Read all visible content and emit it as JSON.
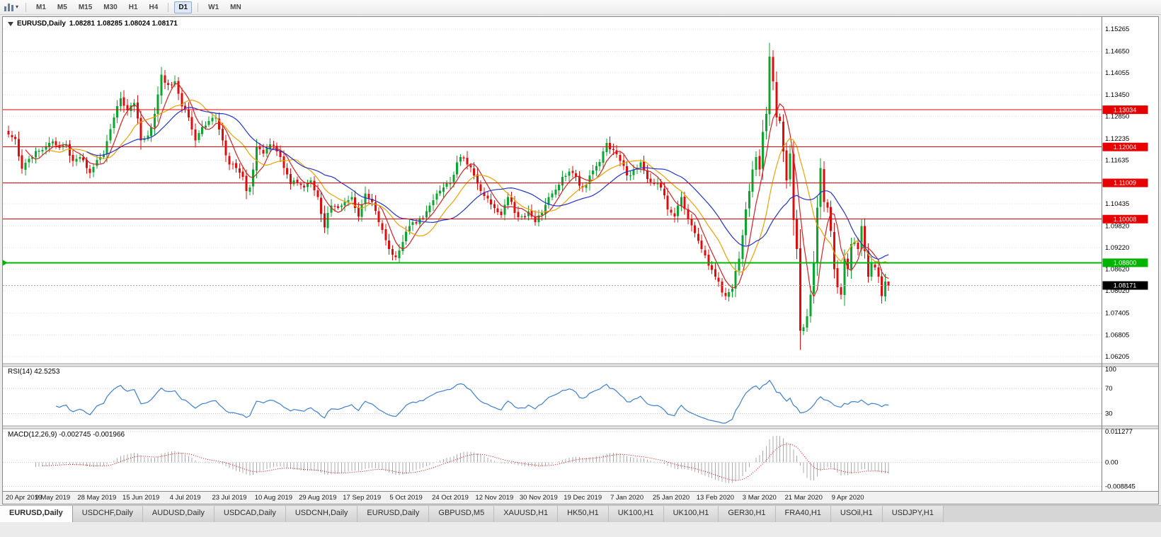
{
  "window": {
    "title_symbol": "EURUSD,Daily",
    "title_ohlc": "1.08281 1.08285 1.08024 1.08171"
  },
  "toolbar": {
    "timeframes": [
      "M1",
      "M5",
      "M15",
      "M30",
      "H1",
      "H4",
      "D1",
      "W1",
      "MN"
    ],
    "active_timeframe": "D1"
  },
  "colors": {
    "candle_up": "#0aa62e",
    "candle_down": "#e00d0d",
    "grid": "#e2e2e2",
    "axis_divider": "#808080",
    "rsi_line": "#3d7fd0",
    "macd_hist": "#ababab",
    "macd_signal": "#e00000",
    "current_price_line": "#a8a8a8",
    "level_red": "#e60000",
    "level_green": "#00b400",
    "tag_black": "#000000"
  },
  "chart_data": {
    "type": "candlestick",
    "symbol": "EURUSD",
    "timeframe": "Daily",
    "last_ohlc": {
      "open": 1.08281,
      "high": 1.08285,
      "low": 1.08024,
      "close": 1.08171
    },
    "price_axis_ticks": [
      "1.15265",
      "1.14650",
      "1.14055",
      "1.13450",
      "1.12850",
      "1.12235",
      "1.11635",
      "1.11040",
      "1.10435",
      "1.09820",
      "1.09220",
      "1.08620",
      "1.08020",
      "1.07405",
      "1.06805",
      "1.06205"
    ],
    "date_labels": [
      "20 Apr 2019",
      "9 May 2019",
      "28 May 2019",
      "15 Jun 2019",
      "4 Jul 2019",
      "23 Jul 2019",
      "10 Aug 2019",
      "29 Aug 2019",
      "17 Sep 2019",
      "5 Oct 2019",
      "24 Oct 2019",
      "12 Nov 2019",
      "30 Nov 2019",
      "19 Dec 2019",
      "7 Jan 2020",
      "25 Jan 2020",
      "13 Feb 2020",
      "3 Mar 2020",
      "21 Mar 2020",
      "9 Apr 2020"
    ],
    "candles_per_label": 13,
    "num_candles": 260,
    "price_path_anchors": [
      [
        0,
        1.1235
      ],
      [
        2,
        1.1222
      ],
      [
        4,
        1.114
      ],
      [
        6,
        1.1168
      ],
      [
        9,
        1.119
      ],
      [
        13,
        1.1215
      ],
      [
        15,
        1.1198
      ],
      [
        17,
        1.1208
      ],
      [
        19,
        1.1162
      ],
      [
        21,
        1.1172
      ],
      [
        24,
        1.1128
      ],
      [
        26,
        1.1165
      ],
      [
        28,
        1.1178
      ],
      [
        30,
        1.125
      ],
      [
        33,
        1.1335
      ],
      [
        35,
        1.1302
      ],
      [
        37,
        1.1322
      ],
      [
        39,
        1.1218
      ],
      [
        41,
        1.1232
      ],
      [
        43,
        1.1292
      ],
      [
        45,
        1.14
      ],
      [
        47,
        1.1372
      ],
      [
        49,
        1.1382
      ],
      [
        51,
        1.1312
      ],
      [
        53,
        1.1282
      ],
      [
        55,
        1.1218
      ],
      [
        57,
        1.1256
      ],
      [
        59,
        1.1272
      ],
      [
        61,
        1.1282
      ],
      [
        63,
        1.1218
      ],
      [
        65,
        1.1152
      ],
      [
        67,
        1.1142
      ],
      [
        69,
        1.1118
      ],
      [
        70,
        1.1078
      ],
      [
        71,
        1.1088
      ],
      [
        73,
        1.12
      ],
      [
        75,
        1.1182
      ],
      [
        77,
        1.1208
      ],
      [
        79,
        1.1188
      ],
      [
        81,
        1.1142
      ],
      [
        83,
        1.1098
      ],
      [
        85,
        1.1102
      ],
      [
        87,
        1.1088
      ],
      [
        89,
        1.1108
      ],
      [
        91,
        1.1062
      ],
      [
        93,
        1.0978
      ],
      [
        95,
        1.1038
      ],
      [
        97,
        1.1032
      ],
      [
        99,
        1.1048
      ],
      [
        101,
        1.1062
      ],
      [
        103,
        1.1008
      ],
      [
        105,
        1.1072
      ],
      [
        107,
        1.1048
      ],
      [
        109,
        1.0992
      ],
      [
        111,
        1.0942
      ],
      [
        113,
        1.0902
      ],
      [
        114,
        1.0895
      ],
      [
        116,
        1.0938
      ],
      [
        118,
        1.0982
      ],
      [
        120,
        1.0988
      ],
      [
        122,
        1.1002
      ],
      [
        124,
        1.1038
      ],
      [
        126,
        1.1072
      ],
      [
        128,
        1.1088
      ],
      [
        130,
        1.1102
      ],
      [
        132,
        1.1158
      ],
      [
        133,
        1.1172
      ],
      [
        135,
        1.1152
      ],
      [
        137,
        1.1122
      ],
      [
        139,
        1.1078
      ],
      [
        141,
        1.1058
      ],
      [
        143,
        1.1032
      ],
      [
        145,
        1.1012
      ],
      [
        147,
        1.1062
      ],
      [
        149,
        1.1018
      ],
      [
        151,
        1.1008
      ],
      [
        153,
        1.1022
      ],
      [
        155,
        1.0992
      ],
      [
        157,
        1.1018
      ],
      [
        159,
        1.1062
      ],
      [
        161,
        1.1082
      ],
      [
        163,
        1.1118
      ],
      [
        165,
        1.1132
      ],
      [
        167,
        1.1118
      ],
      [
        169,
        1.1088
      ],
      [
        171,
        1.1122
      ],
      [
        173,
        1.1148
      ],
      [
        175,
        1.1188
      ],
      [
        176,
        1.1212
      ],
      [
        178,
        1.1192
      ],
      [
        180,
        1.1162
      ],
      [
        182,
        1.1122
      ],
      [
        184,
        1.1138
      ],
      [
        186,
        1.1158
      ],
      [
        188,
        1.1112
      ],
      [
        190,
        1.1098
      ],
      [
        192,
        1.1088
      ],
      [
        194,
        1.1028
      ],
      [
        196,
        1.1008
      ],
      [
        198,
        1.1062
      ],
      [
        200,
        1.1002
      ],
      [
        202,
        1.0962
      ],
      [
        204,
        1.0918
      ],
      [
        206,
        1.0872
      ],
      [
        208,
        1.0842
      ],
      [
        210,
        1.0798
      ],
      [
        211,
        1.0788
      ],
      [
        213,
        1.0808
      ],
      [
        215,
        1.0892
      ],
      [
        217,
        1.1028
      ],
      [
        219,
        1.1138
      ],
      [
        220,
        1.1172
      ],
      [
        221,
        1.1138
      ],
      [
        222,
        1.1242
      ],
      [
        223,
        1.1292
      ],
      [
        224,
        1.145
      ],
      [
        225,
        1.1382
      ],
      [
        226,
        1.1282
      ],
      [
        227,
        1.1272
      ],
      [
        228,
        1.1188
      ],
      [
        229,
        1.1108
      ],
      [
        230,
        1.1182
      ],
      [
        231,
        1.0998
      ],
      [
        232,
        1.0918
      ],
      [
        233,
        1.0692
      ],
      [
        234,
        1.0702
      ],
      [
        235,
        1.0732
      ],
      [
        236,
        1.0792
      ],
      [
        237,
        1.0882
      ],
      [
        238,
        1.1032
      ],
      [
        239,
        1.1142
      ],
      [
        240,
        1.1048
      ],
      [
        241,
        1.1032
      ],
      [
        242,
        1.0968
      ],
      [
        243,
        1.0862
      ],
      [
        244,
        1.0812
      ],
      [
        245,
        1.0792
      ],
      [
        246,
        1.0892
      ],
      [
        247,
        1.0862
      ],
      [
        248,
        1.0932
      ],
      [
        249,
        1.0938
      ],
      [
        250,
        1.0918
      ],
      [
        251,
        1.0982
      ],
      [
        252,
        1.0912
      ],
      [
        253,
        1.0842
      ],
      [
        254,
        1.0878
      ],
      [
        256,
        1.0842
      ],
      [
        257,
        1.0788
      ],
      [
        258,
        1.0828
      ],
      [
        259,
        1.08171
      ]
    ],
    "moving_averages": [
      {
        "period": 6,
        "color": "#d62020"
      },
      {
        "period": 13,
        "color": "#efa100"
      },
      {
        "period": 24,
        "color": "#2433cf"
      }
    ],
    "levels": [
      {
        "price": 1.13034,
        "label": "1.13034",
        "color": "#e60000",
        "type": "resistance"
      },
      {
        "price": 1.12004,
        "label": "1.12004",
        "color": "#e60000",
        "type": "resistance"
      },
      {
        "price": 1.11009,
        "label": "1.11009",
        "color": "#e60000",
        "type": "resistance"
      },
      {
        "price": 1.10008,
        "label": "1.10008",
        "color": "#e60000",
        "type": "resistance"
      },
      {
        "price": 1.088,
        "label": "1.08800",
        "color": "#00b400",
        "type": "support"
      },
      {
        "price": 1.08171,
        "label": "1.08171",
        "color": "#000000",
        "type": "current"
      }
    ],
    "indicators": {
      "rsi": {
        "label": "RSI(14) 42.5253",
        "period": 14,
        "current": 42.5253,
        "axis_ticks": [
          "100",
          "70",
          "30"
        ],
        "level_lines": [
          70,
          30
        ]
      },
      "macd": {
        "label": "MACD(12,26,9) -0.002745 -0.001966",
        "fast": 12,
        "slow": 26,
        "signal": 9,
        "current_main": -0.002745,
        "current_signal": -0.001966,
        "axis_ticks": [
          "0.011277",
          "0.00",
          "-0.008845"
        ]
      }
    }
  },
  "tabs": [
    {
      "label": "EURUSD,Daily",
      "active": true
    },
    {
      "label": "USDCHF,Daily",
      "active": false
    },
    {
      "label": "AUDUSD,Daily",
      "active": false
    },
    {
      "label": "USDCAD,Daily",
      "active": false
    },
    {
      "label": "USDCNH,Daily",
      "active": false
    },
    {
      "label": "EURUSD,Daily",
      "active": false
    },
    {
      "label": "GBPUSD,M5",
      "active": false
    },
    {
      "label": "XAUUSD,H1",
      "active": false
    },
    {
      "label": "HK50,H1",
      "active": false
    },
    {
      "label": "UK100,H1",
      "active": false
    },
    {
      "label": "UK100,H1",
      "active": false
    },
    {
      "label": "GER30,H1",
      "active": false
    },
    {
      "label": "FRA40,H1",
      "active": false
    },
    {
      "label": "USOil,H1",
      "active": false
    },
    {
      "label": "USDJPY,H1",
      "active": false
    }
  ]
}
